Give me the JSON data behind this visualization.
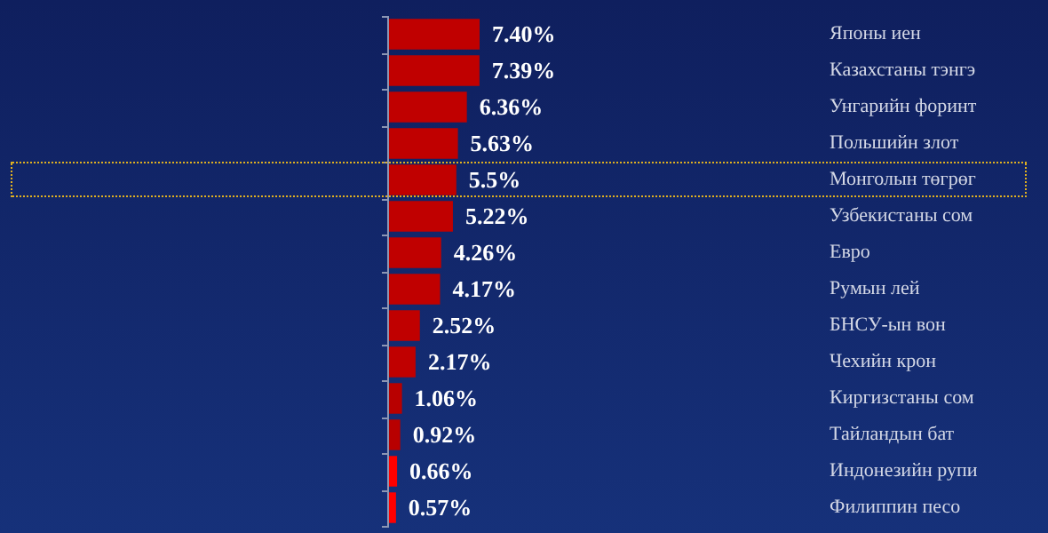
{
  "chart_data": {
    "type": "bar",
    "orientation": "horizontal",
    "categories": [
      "Японы иен",
      "Казахстаны тэнгэ",
      "Унгарийн форинт",
      "Польшийн злот",
      "Монголын төгрөг",
      "Узбекистаны сом",
      "Евро",
      "Румын лей",
      "БНСУ-ын вон",
      "Чехийн крон",
      "Киргизстаны сом",
      "Тайландын бат",
      "Индонезийн рупи",
      "Филиппин песо"
    ],
    "values": [
      7.4,
      7.39,
      6.36,
      5.63,
      5.5,
      5.22,
      4.26,
      4.17,
      2.52,
      2.17,
      1.06,
      0.92,
      0.66,
      0.57
    ],
    "value_labels": [
      "7.40%",
      "7.39%",
      "6.36%",
      "5.63%",
      "5.5%",
      "5.22%",
      "4.26%",
      "4.17%",
      "2.52%",
      "2.17%",
      "1.06%",
      "0.92%",
      "0.66%",
      "0.57%"
    ],
    "colors": [
      "#c00000",
      "#c00000",
      "#c00000",
      "#c00000",
      "#c00000",
      "#c00000",
      "#c00000",
      "#c00000",
      "#c00000",
      "#c00000",
      "#b80000",
      "#b80000",
      "#ff0000",
      "#ff0000"
    ],
    "tick_labels": "y",
    "grid": false,
    "legend": false
  }
}
